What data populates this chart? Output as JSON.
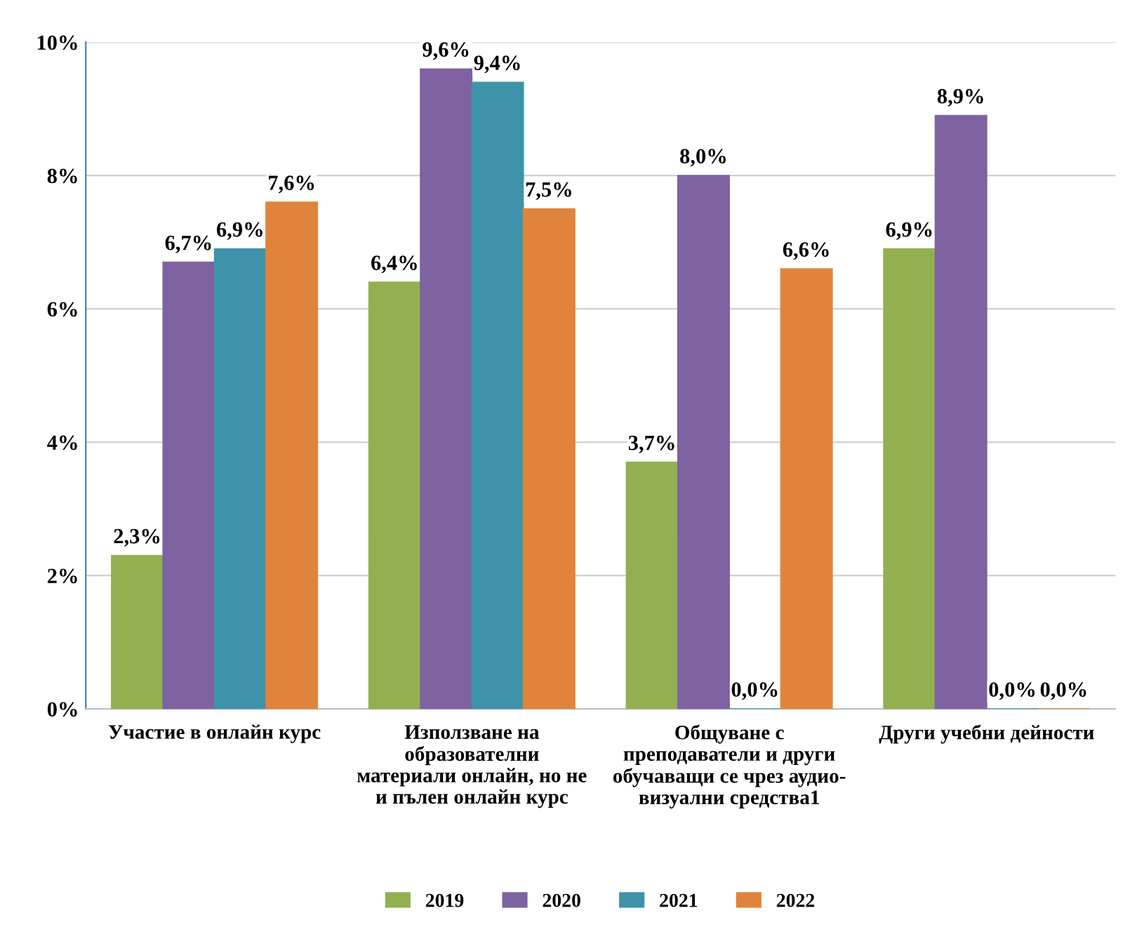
{
  "chart_data": {
    "type": "bar",
    "categories": [
      "Участие в онлайн курс",
      "Използване на\nобразователни\nматериали онлайн, но не\nи пълен онлайн курс",
      "Общуване с\nпреподаватели и други\nобучаващи се чрез аудио-\nвизуални средства1",
      "Други учебни дейности"
    ],
    "series": [
      {
        "name": "2019",
        "color": "#92b050",
        "values": [
          2.3,
          6.4,
          3.7,
          6.9
        ],
        "value_labels": [
          "2,3%",
          "6,4%",
          "3,7%",
          "6,9%"
        ]
      },
      {
        "name": "2020",
        "color": "#7f62a2",
        "values": [
          6.7,
          9.6,
          8.0,
          8.9
        ],
        "value_labels": [
          "6,7%",
          "9,6%",
          "8,0%",
          "8,9%"
        ]
      },
      {
        "name": "2021",
        "color": "#3e93aa",
        "values": [
          6.9,
          9.4,
          0.0,
          0.0
        ],
        "value_labels": [
          "6,9%",
          "9,4%",
          "0,0%",
          "0,0%"
        ]
      },
      {
        "name": "2022",
        "color": "#e0843c",
        "values": [
          7.6,
          7.5,
          6.6,
          0.0
        ],
        "value_labels": [
          "7,6%",
          "7,5%",
          "6,6%",
          "0,0%"
        ]
      }
    ],
    "ylim": [
      0,
      10
    ],
    "yticks": [
      {
        "value": 0,
        "label": "0%"
      },
      {
        "value": 2,
        "label": "2%"
      },
      {
        "value": 4,
        "label": "4%"
      },
      {
        "value": 6,
        "label": "6%"
      },
      {
        "value": 8,
        "label": "8%"
      },
      {
        "value": 10,
        "label": "10%"
      }
    ],
    "grid": "y",
    "legend": "bottom"
  }
}
